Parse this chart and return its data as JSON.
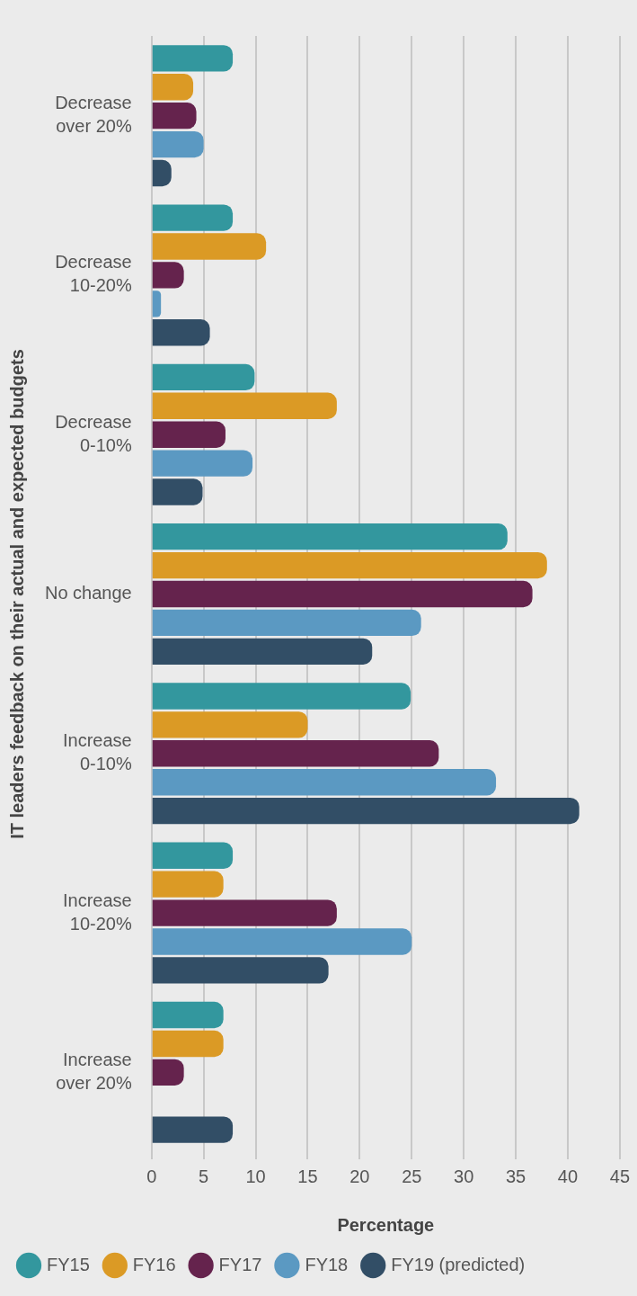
{
  "chart_data": {
    "type": "bar",
    "orientation": "horizontal",
    "ylabel": "IT leaders feedback on their actual and expected budgets",
    "xlabel": "Percentage",
    "categories": [
      "Decrease over 20%",
      "Decrease 10-20%",
      "Decrease 0-10%",
      "No change",
      "Increase 0-10%",
      "Increase 10-20%",
      "Increase over 20%"
    ],
    "series": [
      {
        "name": "FY15",
        "color": "#33979e",
        "values": [
          7.8,
          7.8,
          9.9,
          34.2,
          24.9,
          7.8,
          6.9
        ]
      },
      {
        "name": "FY16",
        "color": "#db9a25",
        "values": [
          4.0,
          11.0,
          17.8,
          38.0,
          15.0,
          6.9,
          6.9
        ]
      },
      {
        "name": "FY17",
        "color": "#65234d",
        "values": [
          4.3,
          3.1,
          7.1,
          36.6,
          27.6,
          17.8,
          3.1
        ]
      },
      {
        "name": "FY18",
        "color": "#5b99c2",
        "values": [
          5.0,
          0.9,
          9.7,
          25.9,
          33.1,
          25.0,
          null
        ]
      },
      {
        "name": "FY19 (predicted)",
        "color": "#324e66",
        "values": [
          1.9,
          5.6,
          4.9,
          21.2,
          41.1,
          17.0,
          7.8
        ]
      }
    ],
    "xlim": [
      0,
      45
    ],
    "xticks": [
      0,
      5,
      10,
      15,
      20,
      25,
      30,
      35,
      40,
      45
    ],
    "grid": "x",
    "legend": "bottom"
  }
}
